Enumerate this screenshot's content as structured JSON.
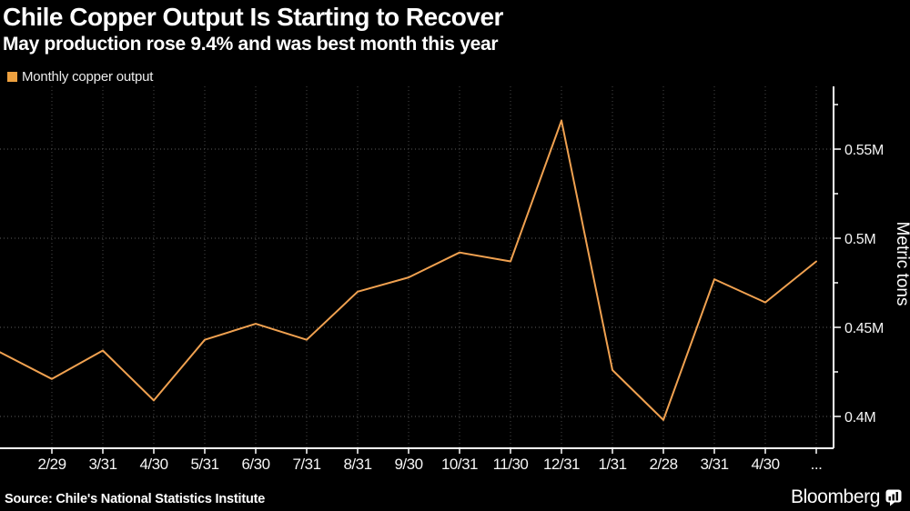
{
  "header": {
    "title": "Chile Copper Output Is Starting to Recover",
    "subtitle": "May production rose 9.4% and was best month this year"
  },
  "legend": {
    "label": "Monthly copper output",
    "swatch_color": "#EDA03F"
  },
  "chart_data": {
    "type": "line",
    "title": "Chile Copper Output Is Starting to Recover",
    "subtitle": "May production rose 9.4% and was best month this year",
    "ylabel": "Metric tons",
    "series_name": "Monthly copper output",
    "line_color": "#F0A150",
    "units": "millions of metric tons",
    "x_tick_labels": [
      "2/29",
      "3/31",
      "4/30",
      "5/31",
      "6/30",
      "7/31",
      "8/31",
      "9/30",
      "10/31",
      "11/30",
      "12/31",
      "1/31",
      "2/28",
      "3/31",
      "4/30",
      "..."
    ],
    "values_at_ticks": [
      0.421,
      0.437,
      0.409,
      0.443,
      0.452,
      0.443,
      0.47,
      0.478,
      0.492,
      0.487,
      0.566,
      0.426,
      0.398,
      0.477,
      0.464,
      0.487
    ],
    "lead_in_value": 0.436,
    "y_ticks": [
      {
        "value": 0.4,
        "label": "0.4M"
      },
      {
        "value": 0.45,
        "label": "0.45M"
      },
      {
        "value": 0.5,
        "label": "0.5M"
      },
      {
        "value": 0.55,
        "label": "0.55M"
      }
    ],
    "y_minor_ticks": [
      0.425,
      0.475,
      0.525,
      0.575
    ],
    "ylim": [
      0.382,
      0.585
    ],
    "grid": true,
    "legend_position": "top-left"
  },
  "footer": {
    "source": "Source: Chile's National Statistics Institute",
    "brand": "Bloomberg"
  }
}
